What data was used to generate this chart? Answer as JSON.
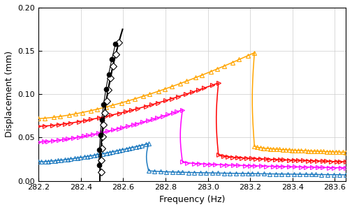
{
  "xlim": [
    282.2,
    283.65
  ],
  "ylim": [
    0,
    0.2
  ],
  "xlabel": "Frequency (Hz)",
  "ylabel": "Displacement (mm)",
  "xticks": [
    282.2,
    282.4,
    282.6,
    282.8,
    283.0,
    283.2,
    283.4,
    283.6
  ],
  "yticks": [
    0,
    0.05,
    0.1,
    0.15,
    0.2
  ],
  "figsize": [
    5.04,
    3.0
  ],
  "dpi": 100,
  "pll_blue": "#1F7BC0",
  "pll_magenta": "#FF00FF",
  "pll_red": "#FF0000",
  "pll_orange": "#FFA500"
}
